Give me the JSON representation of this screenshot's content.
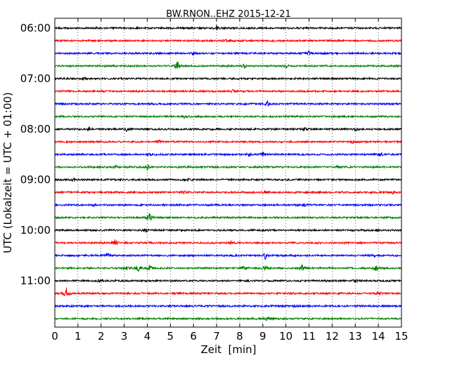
{
  "chart_data": {
    "type": "line",
    "title": "BW.RNON..EHZ 2015-12-21",
    "xlabel": "Zeit  [min]",
    "ylabel": "UTC (Lokalzeit = UTC + 01:00)",
    "xlim": [
      0,
      15
    ],
    "x_ticks": [
      "0",
      "1",
      "2",
      "3",
      "4",
      "5",
      "6",
      "7",
      "8",
      "9",
      "10",
      "11",
      "12",
      "13",
      "14",
      "15"
    ],
    "y_tick_labels": [
      "06:00",
      "07:00",
      "08:00",
      "09:00",
      "10:00",
      "11:00"
    ],
    "grid": {
      "x": true,
      "y": false,
      "style": "dotted"
    },
    "trace_interval_minutes": 15,
    "trace_colors": [
      "#000000",
      "#ff0000",
      "#0000ff",
      "#008000"
    ],
    "traces": [
      {
        "start": "06:00",
        "events": [
          [
            7.0,
            0.5
          ]
        ]
      },
      {
        "start": "06:15",
        "events": [
          [
            7.4,
            0.4
          ]
        ]
      },
      {
        "start": "06:30",
        "events": [
          [
            11.0,
            0.5
          ],
          [
            6.0,
            0.3
          ]
        ]
      },
      {
        "start": "06:45",
        "events": [
          [
            5.3,
            1.0
          ],
          [
            8.2,
            0.6
          ],
          [
            10.0,
            0.4
          ]
        ]
      },
      {
        "start": "07:00",
        "events": [
          [
            1.3,
            0.3
          ]
        ]
      },
      {
        "start": "07:15",
        "events": [
          [
            7.7,
            0.3
          ]
        ]
      },
      {
        "start": "07:30",
        "events": [
          [
            9.2,
            0.7
          ]
        ]
      },
      {
        "start": "07:45",
        "events": [
          [
            5.6,
            0.3
          ]
        ]
      },
      {
        "start": "08:00",
        "events": [
          [
            1.5,
            0.4
          ],
          [
            3.1,
            0.5
          ],
          [
            13.0,
            0.4
          ],
          [
            10.8,
            0.4
          ]
        ]
      },
      {
        "start": "08:15",
        "events": [
          [
            4.5,
            0.3
          ],
          [
            12.9,
            0.3
          ]
        ]
      },
      {
        "start": "08:30",
        "events": [
          [
            4.1,
            0.4
          ],
          [
            8.4,
            0.5
          ],
          [
            9.0,
            0.5
          ],
          [
            14.1,
            0.4
          ]
        ]
      },
      {
        "start": "08:45",
        "events": [
          [
            2.6,
            0.4
          ],
          [
            4.0,
            0.7
          ],
          [
            12.2,
            0.3
          ]
        ]
      },
      {
        "start": "09:00",
        "events": [
          [
            0.8,
            0.3
          ],
          [
            5.8,
            0.3
          ]
        ]
      },
      {
        "start": "09:15",
        "events": [
          [
            5.6,
            0.3
          ],
          [
            9.1,
            0.4
          ],
          [
            14.6,
            0.4
          ]
        ]
      },
      {
        "start": "09:30",
        "events": [
          [
            1.7,
            0.3
          ],
          [
            10.8,
            0.3
          ]
        ]
      },
      {
        "start": "09:45",
        "events": [
          [
            4.1,
            1.2
          ]
        ]
      },
      {
        "start": "10:00",
        "events": [
          [
            3.9,
            0.6
          ],
          [
            14.0,
            0.4
          ]
        ]
      },
      {
        "start": "10:15",
        "events": [
          [
            2.6,
            0.9
          ],
          [
            7.6,
            0.3
          ]
        ]
      },
      {
        "start": "10:30",
        "events": [
          [
            9.1,
            0.9
          ],
          [
            2.3,
            0.4
          ],
          [
            13.8,
            0.4
          ]
        ]
      },
      {
        "start": "10:45",
        "events": [
          [
            3.1,
            0.6
          ],
          [
            3.6,
            0.9
          ],
          [
            4.1,
            0.7
          ],
          [
            9.1,
            1.0
          ],
          [
            10.7,
            0.7
          ],
          [
            13.9,
            0.7
          ],
          [
            8.2,
            0.4
          ]
        ]
      },
      {
        "start": "11:00",
        "events": [
          [
            1.9,
            0.3
          ],
          [
            13.0,
            0.4
          ]
        ]
      },
      {
        "start": "11:15",
        "events": [
          [
            0.5,
            1.3
          ],
          [
            14.0,
            0.4
          ]
        ]
      },
      {
        "start": "11:30",
        "events": [
          [
            10.3,
            0.3
          ]
        ]
      },
      {
        "start": "11:45",
        "events": [
          [
            9.2,
            0.4
          ]
        ]
      }
    ]
  }
}
